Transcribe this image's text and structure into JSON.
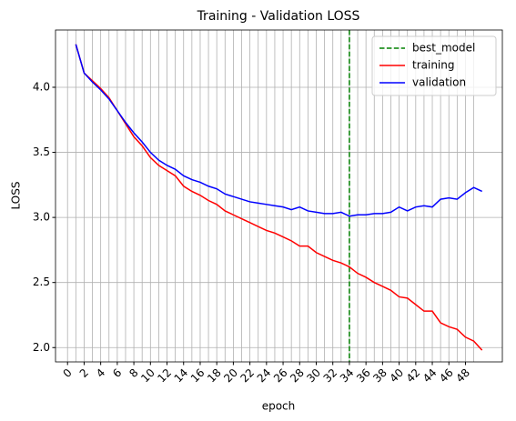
{
  "chart_data": {
    "type": "line",
    "title": "Training - Validation LOSS",
    "x_label": "epoch",
    "y_label": "LOSS",
    "x": [
      1,
      2,
      3,
      4,
      5,
      6,
      7,
      8,
      9,
      10,
      11,
      12,
      13,
      14,
      15,
      16,
      17,
      18,
      19,
      20,
      21,
      22,
      23,
      24,
      25,
      26,
      27,
      28,
      29,
      30,
      31,
      32,
      33,
      34,
      35,
      36,
      37,
      38,
      39,
      40,
      41,
      42,
      43,
      44,
      45,
      46,
      47,
      48,
      49,
      50
    ],
    "series": [
      {
        "name": "training",
        "color": "#ff0000",
        "values": [
          4.33,
          4.11,
          4.05,
          3.99,
          3.92,
          3.82,
          3.72,
          3.62,
          3.55,
          3.46,
          3.4,
          3.36,
          3.32,
          3.24,
          3.2,
          3.17,
          3.13,
          3.1,
          3.05,
          3.02,
          2.99,
          2.96,
          2.93,
          2.9,
          2.88,
          2.85,
          2.82,
          2.78,
          2.78,
          2.73,
          2.7,
          2.67,
          2.65,
          2.62,
          2.57,
          2.54,
          2.5,
          2.47,
          2.44,
          2.39,
          2.38,
          2.33,
          2.28,
          2.28,
          2.19,
          2.16,
          2.14,
          2.08,
          2.05,
          1.98
        ]
      },
      {
        "name": "validation",
        "color": "#0000ff",
        "values": [
          4.33,
          4.11,
          4.04,
          3.98,
          3.91,
          3.82,
          3.73,
          3.65,
          3.58,
          3.5,
          3.44,
          3.4,
          3.37,
          3.32,
          3.29,
          3.27,
          3.24,
          3.22,
          3.18,
          3.16,
          3.14,
          3.12,
          3.11,
          3.1,
          3.09,
          3.08,
          3.06,
          3.08,
          3.05,
          3.04,
          3.03,
          3.03,
          3.04,
          3.01,
          3.02,
          3.02,
          3.03,
          3.03,
          3.04,
          3.08,
          3.05,
          3.08,
          3.09,
          3.08,
          3.14,
          3.15,
          3.14,
          3.19,
          3.23,
          3.2
        ]
      }
    ],
    "vlines": [
      {
        "name": "best_model",
        "x": 34,
        "color": "#008000",
        "style": "dashed"
      }
    ],
    "xlim": [
      -1.45,
      52.45
    ],
    "xticks": [
      0,
      2,
      4,
      6,
      8,
      10,
      12,
      14,
      16,
      18,
      20,
      22,
      24,
      26,
      28,
      30,
      32,
      34,
      36,
      38,
      40,
      42,
      44,
      46,
      48
    ],
    "xticks_minor": [
      1,
      3,
      5,
      7,
      9,
      11,
      13,
      15,
      17,
      19,
      21,
      23,
      25,
      27,
      29,
      31,
      33,
      35,
      37,
      39,
      41,
      43,
      45,
      47,
      49
    ],
    "ylim": [
      1.89,
      4.44
    ],
    "yticks": [
      {
        "value": 2,
        "label": "2.0"
      },
      {
        "value": 2.5,
        "label": "2.5"
      },
      {
        "value": 3,
        "label": "3.0"
      },
      {
        "value": 3.5,
        "label": "3.5"
      },
      {
        "value": 4,
        "label": "4.0"
      }
    ],
    "grid": true,
    "legend": "upper right"
  }
}
